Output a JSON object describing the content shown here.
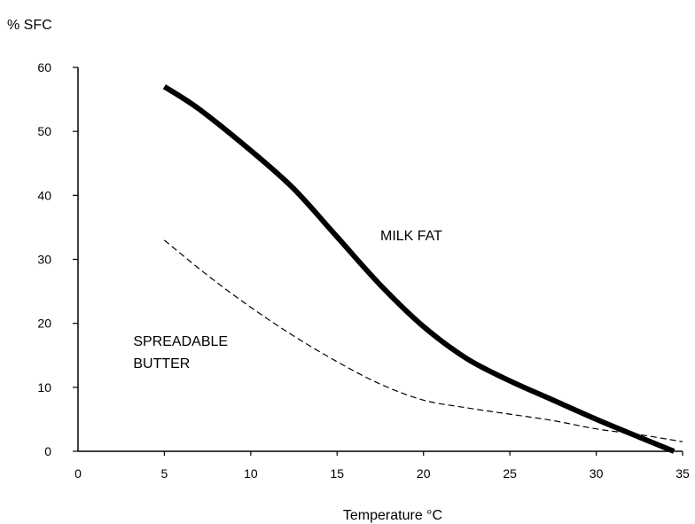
{
  "chart_data": {
    "type": "line",
    "title": "",
    "xlabel": "Temperature °C",
    "ylabel": "% SFC",
    "xlim": [
      0,
      35
    ],
    "ylim": [
      0,
      60
    ],
    "xticks": [
      0,
      5,
      10,
      15,
      20,
      25,
      30,
      35
    ],
    "yticks": [
      0,
      10,
      20,
      30,
      40,
      50,
      60
    ],
    "grid": false,
    "legend": "none",
    "series": [
      {
        "name": "MILK FAT",
        "style": "solid-thick",
        "color": "#000000",
        "x": [
          5,
          7,
          10,
          12.5,
          15,
          17.5,
          20,
          22.5,
          25,
          27.5,
          30,
          32.5,
          34.5
        ],
        "y": [
          57,
          53.5,
          47,
          41,
          33.5,
          26,
          19.5,
          14.5,
          11,
          8,
          5,
          2.2,
          0
        ]
      },
      {
        "name": "SPREADABLE BUTTER",
        "style": "dashed-thin",
        "color": "#000000",
        "x": [
          5,
          7.5,
          10,
          12.5,
          15,
          17.5,
          20,
          22.5,
          25,
          27.5,
          30,
          32.5,
          35
        ],
        "y": [
          33,
          27.5,
          22.5,
          18,
          14,
          10.5,
          8,
          6.8,
          5.8,
          4.8,
          3.5,
          2.6,
          1.5
        ]
      }
    ],
    "annotations": [
      {
        "text": "MILK FAT",
        "x": 17.5,
        "y": 33
      },
      {
        "text": "SPREADABLE",
        "x": 3.2,
        "y": 16.5
      },
      {
        "text": "BUTTER",
        "x": 3.2,
        "y": 13
      }
    ]
  }
}
